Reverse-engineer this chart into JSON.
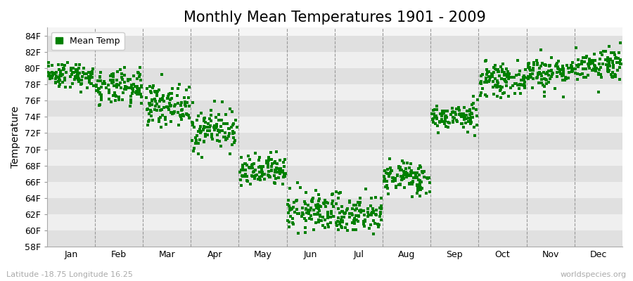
{
  "title": "Monthly Mean Temperatures 1901 - 2009",
  "ylabel": "Temperature",
  "xlabel_labels": [
    "Jan",
    "Feb",
    "Mar",
    "Apr",
    "May",
    "Jun",
    "Jul",
    "Aug",
    "Sep",
    "Oct",
    "Nov",
    "Dec"
  ],
  "footer_left": "Latitude -18.75 Longitude 16.25",
  "footer_right": "worldspecies.org",
  "legend_label": "Mean Temp",
  "dot_color": "#008000",
  "ylim": [
    58,
    85
  ],
  "ytick_values": [
    58,
    60,
    62,
    64,
    66,
    68,
    70,
    72,
    74,
    76,
    78,
    80,
    82,
    84
  ],
  "ytick_labels": [
    "58F",
    "60F",
    "62F",
    "64F",
    "66F",
    "68F",
    "70F",
    "72F",
    "74F",
    "76F",
    "78F",
    "80F",
    "82F",
    "84F"
  ],
  "monthly_means": [
    79.2,
    77.5,
    75.5,
    72.5,
    67.2,
    62.3,
    62.0,
    66.5,
    74.0,
    78.5,
    79.5,
    80.5
  ],
  "monthly_stds": [
    0.8,
    1.1,
    1.2,
    1.3,
    1.0,
    1.2,
    1.2,
    1.0,
    0.8,
    0.9,
    1.0,
    1.0
  ],
  "n_years": 109,
  "seed": 42,
  "marker_size": 2.5,
  "title_fontsize": 15,
  "axis_fontsize": 10,
  "tick_fontsize": 9,
  "footer_fontsize": 8,
  "legend_fontsize": 9,
  "band_color_dark": "#e0e0e0",
  "band_color_light": "#efefef",
  "bg_color": "#f5f5f5"
}
